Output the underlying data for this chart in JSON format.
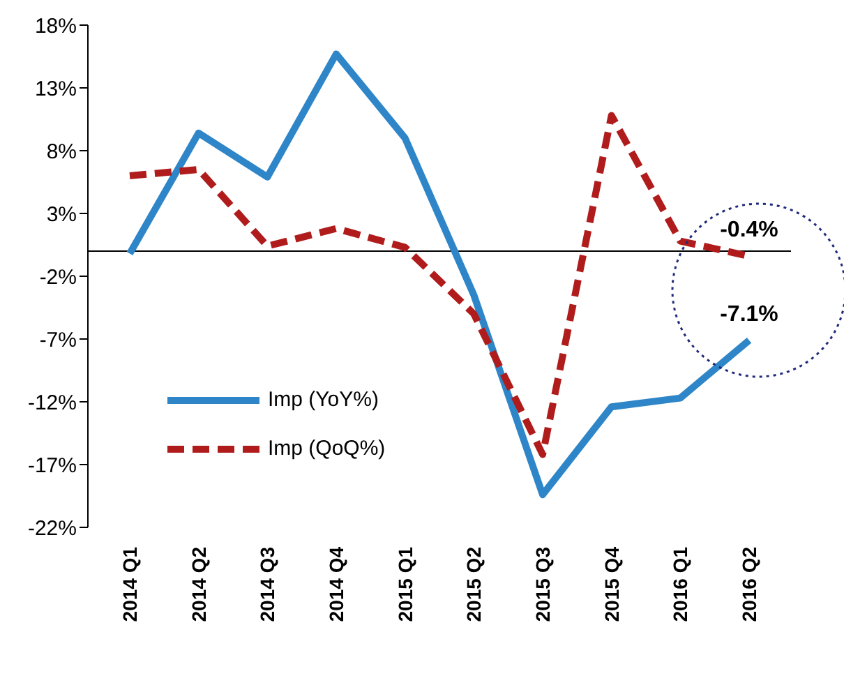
{
  "chart_data": {
    "type": "line",
    "categories": [
      "2014 Q1",
      "2014 Q2",
      "2014 Q3",
      "2014 Q4",
      "2015 Q1",
      "2015 Q2",
      "2015 Q3",
      "2015 Q4",
      "2016 Q1",
      "2016 Q2"
    ],
    "series": [
      {
        "name": "Imp (YoY%)",
        "color": "#2e86c8",
        "line_style": "solid",
        "values": [
          -0.2,
          9.4,
          5.9,
          15.7,
          9.0,
          -3.5,
          -19.4,
          -12.4,
          -11.7,
          -7.1
        ],
        "value_labels": [
          null,
          null,
          null,
          null,
          null,
          null,
          null,
          null,
          null,
          "-7.1%"
        ]
      },
      {
        "name": "Imp (QoQ%)",
        "color": "#b01c1c",
        "line_style": "dashed",
        "values": [
          6.0,
          6.5,
          0.4,
          1.8,
          0.3,
          -5.0,
          -16.2,
          10.8,
          0.8,
          -0.4
        ],
        "value_labels": [
          null,
          null,
          null,
          null,
          null,
          null,
          null,
          null,
          null,
          "-0.4%"
        ]
      }
    ],
    "ylim": [
      -22,
      18
    ],
    "yticks": [
      {
        "value": -22,
        "label": "-22%"
      },
      {
        "value": -17,
        "label": "-17%"
      },
      {
        "value": -12,
        "label": "-12%"
      },
      {
        "value": -7,
        "label": "-7%"
      },
      {
        "value": -2,
        "label": "-2%"
      },
      {
        "value": 3,
        "label": "3%"
      },
      {
        "value": 8,
        "label": "8%"
      },
      {
        "value": 13,
        "label": "13%"
      },
      {
        "value": 18,
        "label": "18%"
      }
    ],
    "grid": false,
    "legend": "left",
    "marker": "none"
  }
}
